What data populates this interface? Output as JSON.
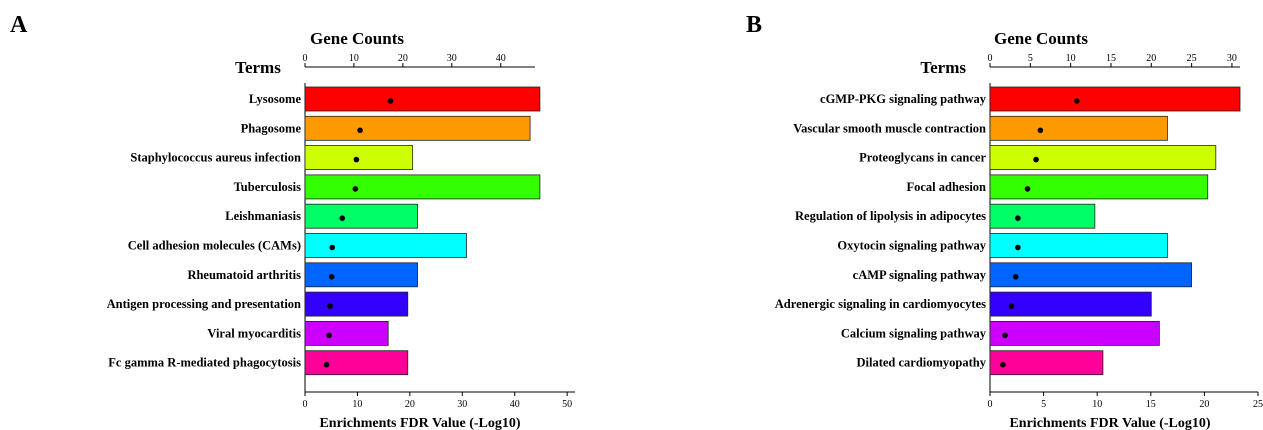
{
  "chart_data": [
    {
      "type": "bar",
      "panel_label": "A",
      "title": "Gene Counts",
      "categories_header": "Terms",
      "xlabel": "Enrichments FDR Value (-Log10)",
      "categories": [
        "Lysosome",
        "Phagosome",
        "Staphylococcus aureus infection",
        "Tuberculosis",
        "Leishmaniasis",
        "Cell adhesion molecules (CAMs)",
        "Rheumatoid arthritis",
        "Antigen processing and presentation",
        "Viral myocarditis",
        "Fc gamma R-mediated phagocytosis"
      ],
      "series": [
        {
          "axis": "top",
          "values": [
            48,
            46,
            22,
            48,
            23,
            33,
            23,
            21,
            17,
            21
          ]
        },
        {
          "axis": "bottom",
          "marker": "dot",
          "values": [
            16.3,
            10.5,
            9.8,
            9.6,
            7.1,
            5.2,
            5.1,
            4.8,
            4.6,
            4.1
          ]
        }
      ],
      "top_axis": {
        "lim": [
          0,
          47
        ],
        "ticks": [
          "0",
          "10",
          "20",
          "30",
          "40"
        ]
      },
      "bottom_axis": {
        "lim": [
          0,
          51.5
        ],
        "ticks": [
          "0",
          "10",
          "20",
          "30",
          "40",
          "50"
        ]
      },
      "bar_colors": [
        "#ff0000",
        "#ff9900",
        "#ccff00",
        "#33ff00",
        "#00ff66",
        "#00ffff",
        "#0066ff",
        "#3300ff",
        "#cc00ff",
        "#ff0099"
      ]
    },
    {
      "type": "bar",
      "panel_label": "B",
      "title": "Gene Counts",
      "categories_header": "Terms",
      "xlabel": "Enrichments FDR Value (-Log10)",
      "categories": [
        "cGMP-PKG signaling pathway",
        "Vascular smooth muscle contraction",
        "Proteoglycans in cancer",
        "Focal adhesion",
        "Regulation of lipolysis in adipocytes",
        "Oxytocin signaling pathway",
        "cAMP signaling pathway",
        "Adrenergic signaling in cardiomyocytes",
        "Calcium signaling pathway",
        "Dilated cardiomyopathy"
      ],
      "series": [
        {
          "axis": "top",
          "values": [
            31,
            22,
            28,
            27,
            13,
            22,
            25,
            20,
            21,
            14
          ]
        },
        {
          "axis": "bottom",
          "marker": "dot",
          "values": [
            8.1,
            4.7,
            4.3,
            3.5,
            2.6,
            2.6,
            2.4,
            2.0,
            1.4,
            1.2
          ]
        }
      ],
      "top_axis": {
        "lim": [
          0,
          31
        ],
        "ticks": [
          "0",
          "5",
          "10",
          "15",
          "20",
          "25",
          "30"
        ]
      },
      "bottom_axis": {
        "lim": [
          0,
          25
        ],
        "ticks": [
          "0",
          "5",
          "10",
          "15",
          "20",
          "25"
        ]
      },
      "bar_colors": [
        "#ff0000",
        "#ff9900",
        "#ccff00",
        "#33ff00",
        "#00ff66",
        "#00ffff",
        "#0066ff",
        "#3300ff",
        "#cc00ff",
        "#ff0099"
      ]
    }
  ]
}
